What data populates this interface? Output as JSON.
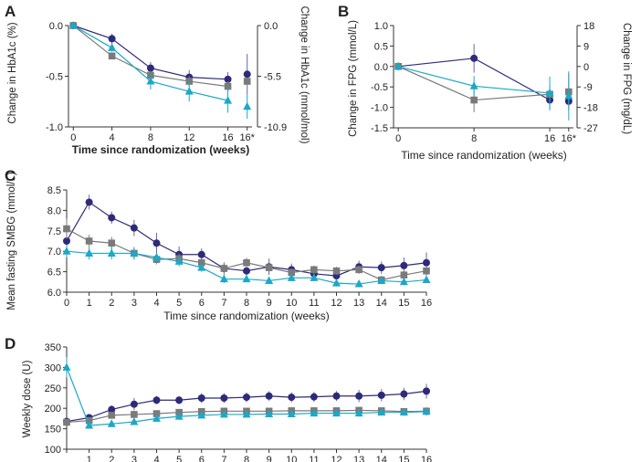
{
  "colors": {
    "series_a": "#2e2a7a",
    "series_b": "#7a7a7a",
    "series_c": "#1aa9c8",
    "axis": "#333333",
    "error_bar_a": "#6a64b0"
  },
  "chart_data": [
    {
      "panel": "A",
      "type": "line",
      "xlabel": "Time since randomization (weeks)",
      "ylabel": "Change in HbA1c (%)",
      "ylabel_right": "Change in HbA1c (mmol/mol)",
      "x_ticks": [
        "0",
        "4",
        "8",
        "12",
        "16",
        "16*"
      ],
      "y_ticks": [
        "0.0",
        "-0.5",
        "-1.0"
      ],
      "y_ticks_right": [
        "0.0",
        "-5.5",
        "-10.9"
      ],
      "ylim": [
        -1.0,
        0.0
      ],
      "xlim": [
        -0.5,
        18.5
      ],
      "series": [
        {
          "name": "circle",
          "marker": "circle",
          "x": [
            0,
            4,
            8,
            12,
            16
          ],
          "values": [
            0.0,
            -0.13,
            -0.42,
            -0.51,
            -0.53
          ],
          "err": [
            0.0,
            0.05,
            0.06,
            0.07,
            0.07
          ],
          "extra": {
            "x": 18,
            "value": -0.48,
            "err": 0.2
          }
        },
        {
          "name": "square",
          "marker": "square",
          "x": [
            0,
            4,
            8,
            12,
            16
          ],
          "values": [
            0.0,
            -0.3,
            -0.49,
            -0.55,
            -0.6
          ],
          "err": [
            0.0,
            0.03,
            0.04,
            0.05,
            0.05
          ],
          "extra": {
            "x": 18,
            "value": -0.55,
            "err": 0.0
          }
        },
        {
          "name": "triangle",
          "marker": "triangle",
          "x": [
            0,
            4,
            8,
            12,
            16
          ],
          "values": [
            0.0,
            -0.22,
            -0.55,
            -0.65,
            -0.74
          ],
          "err": [
            0.0,
            0.04,
            0.08,
            0.1,
            0.12
          ],
          "extra": {
            "x": 18,
            "value": -0.8,
            "err": 0.12
          }
        }
      ]
    },
    {
      "panel": "B",
      "type": "line",
      "xlabel": "Time since randomization (weeks)",
      "ylabel": "Change in FPG (mmol/L)",
      "ylabel_right": "Change in FPG (mg/dL)",
      "x_ticks": [
        "0",
        "8",
        "16",
        "16*"
      ],
      "y_ticks": [
        "1.0",
        "0.5",
        "0.0",
        "-0.5",
        "-1.0",
        "-1.5"
      ],
      "y_ticks_right": [
        "18",
        "9",
        "0",
        "-9",
        "-18",
        "-27"
      ],
      "ylim": [
        -1.5,
        1.0
      ],
      "xlim": [
        -0.5,
        18.5
      ],
      "series": [
        {
          "name": "circle",
          "marker": "circle",
          "x": [
            0,
            8,
            16
          ],
          "values": [
            0.0,
            0.2,
            -0.82
          ],
          "err": [
            0.0,
            0.35,
            0.25
          ],
          "extra": {
            "x": 18,
            "value": -0.85,
            "err": 0.0
          }
        },
        {
          "name": "square",
          "marker": "square",
          "x": [
            0,
            8,
            16
          ],
          "values": [
            0.0,
            -0.82,
            -0.68
          ],
          "err": [
            0.0,
            0.3,
            0.2
          ],
          "extra": {
            "x": 18,
            "value": -0.62,
            "err": 0.45
          }
        },
        {
          "name": "triangle",
          "marker": "triangle",
          "x": [
            0,
            8,
            16
          ],
          "values": [
            0.0,
            -0.48,
            -0.65
          ],
          "err": [
            0.0,
            0.25,
            0.4
          ],
          "extra": {
            "x": 18,
            "value": -0.72,
            "err": 0.6
          }
        }
      ]
    },
    {
      "panel": "C",
      "type": "line",
      "xlabel": "Time since randomization (weeks)",
      "ylabel": "Mean fasting SMBG (mmol/L)",
      "x_ticks": [
        "0",
        "1",
        "2",
        "3",
        "4",
        "5",
        "6",
        "7",
        "8",
        "9",
        "10",
        "11",
        "12",
        "13",
        "14",
        "15",
        "16"
      ],
      "y_ticks": [
        "8.5",
        "8.0",
        "7.5",
        "7.0",
        "6.5",
        "6.0"
      ],
      "ylim": [
        6.0,
        8.5
      ],
      "xlim": [
        0,
        16
      ],
      "series": [
        {
          "name": "circle",
          "marker": "circle",
          "x": [
            0,
            1,
            2,
            3,
            4,
            5,
            6,
            7,
            8,
            9,
            10,
            11,
            12,
            13,
            14,
            15,
            16
          ],
          "values": [
            7.25,
            8.2,
            7.82,
            7.57,
            7.2,
            6.92,
            6.92,
            6.58,
            6.52,
            6.62,
            6.55,
            6.45,
            6.4,
            6.62,
            6.6,
            6.65,
            6.72
          ],
          "err": [
            0.2,
            0.18,
            0.15,
            0.2,
            0.25,
            0.2,
            0.15,
            0.15,
            0.15,
            0.2,
            0.15,
            0.15,
            0.2,
            0.15,
            0.15,
            0.2,
            0.25
          ]
        },
        {
          "name": "square",
          "marker": "square",
          "x": [
            0,
            1,
            2,
            3,
            4,
            5,
            6,
            7,
            8,
            9,
            10,
            11,
            12,
            13,
            14,
            15,
            16
          ],
          "values": [
            7.55,
            7.25,
            7.2,
            6.95,
            6.8,
            6.82,
            6.72,
            6.58,
            6.72,
            6.6,
            6.48,
            6.55,
            6.52,
            6.55,
            6.3,
            6.42,
            6.52
          ],
          "err": [
            0.25,
            0.15,
            0.15,
            0.15,
            0.12,
            0.12,
            0.1,
            0.12,
            0.12,
            0.12,
            0.1,
            0.1,
            0.1,
            0.1,
            0.1,
            0.1,
            0.12
          ]
        },
        {
          "name": "triangle",
          "marker": "triangle",
          "x": [
            0,
            1,
            2,
            3,
            4,
            5,
            6,
            7,
            8,
            9,
            10,
            11,
            12,
            13,
            14,
            15,
            16
          ],
          "values": [
            7.0,
            6.95,
            6.95,
            6.95,
            6.85,
            6.75,
            6.6,
            6.32,
            6.32,
            6.28,
            6.35,
            6.35,
            6.22,
            6.2,
            6.28,
            6.25,
            6.3
          ],
          "err": [
            0.15,
            0.15,
            0.15,
            0.15,
            0.12,
            0.12,
            0.1,
            0.1,
            0.08,
            0.08,
            0.08,
            0.08,
            0.08,
            0.08,
            0.08,
            0.08,
            0.08
          ]
        }
      ]
    },
    {
      "panel": "D",
      "type": "line",
      "xlabel": "",
      "ylabel": "Weekly dose (U)",
      "x_ticks": [
        "1",
        "2",
        "3",
        "4",
        "5",
        "6",
        "7",
        "8",
        "9",
        "10",
        "11",
        "12",
        "13",
        "14",
        "15",
        "16"
      ],
      "y_ticks": [
        "350",
        "300",
        "250",
        "200",
        "150",
        "100"
      ],
      "ylim": [
        100,
        350
      ],
      "xlim": [
        0,
        16
      ],
      "series": [
        {
          "name": "circle",
          "marker": "circle",
          "x": [
            0,
            1,
            2,
            3,
            4,
            5,
            6,
            7,
            8,
            9,
            10,
            11,
            12,
            13,
            14,
            15,
            16
          ],
          "values": [
            168,
            177,
            197,
            210,
            220,
            220,
            225,
            225,
            227,
            230,
            227,
            228,
            230,
            230,
            232,
            235,
            242
          ],
          "err": [
            8,
            8,
            10,
            15,
            10,
            10,
            12,
            12,
            12,
            12,
            12,
            12,
            12,
            15,
            15,
            15,
            18
          ]
        },
        {
          "name": "square",
          "marker": "square",
          "x": [
            0,
            1,
            2,
            3,
            4,
            5,
            6,
            7,
            8,
            9,
            10,
            11,
            12,
            13,
            14,
            15,
            16
          ],
          "values": [
            166,
            170,
            183,
            185,
            187,
            190,
            192,
            193,
            193,
            193,
            194,
            194,
            194,
            195,
            194,
            192,
            193
          ],
          "err": [
            8,
            8,
            8,
            8,
            8,
            8,
            8,
            8,
            8,
            8,
            8,
            8,
            8,
            8,
            8,
            8,
            10
          ]
        },
        {
          "name": "triangle",
          "marker": "triangle",
          "x": [
            0,
            1,
            2,
            3,
            4,
            5,
            6,
            7,
            8,
            9,
            10,
            11,
            12,
            13,
            14,
            15,
            16
          ],
          "values": [
            300,
            158,
            162,
            167,
            175,
            180,
            183,
            185,
            185,
            186,
            186,
            188,
            188,
            188,
            190,
            190,
            192
          ],
          "err": [
            25,
            8,
            8,
            8,
            8,
            8,
            8,
            8,
            8,
            8,
            8,
            8,
            8,
            8,
            8,
            8,
            10
          ]
        }
      ]
    }
  ],
  "panel_labels": [
    "A",
    "B",
    "C",
    "D"
  ]
}
